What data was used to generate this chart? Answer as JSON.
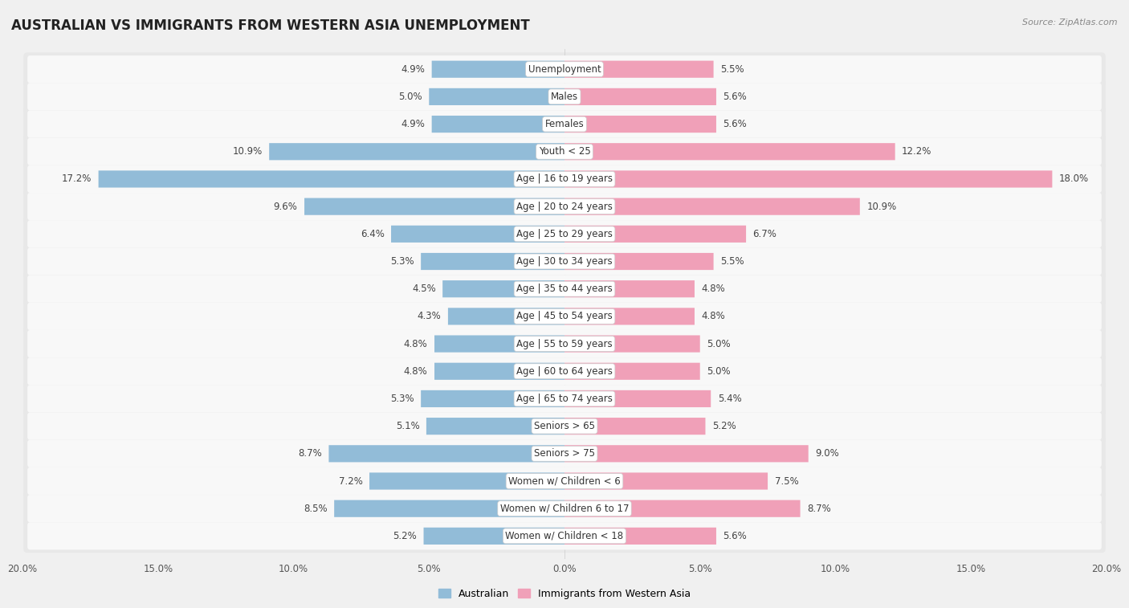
{
  "title": "AUSTRALIAN VS IMMIGRANTS FROM WESTERN ASIA UNEMPLOYMENT",
  "source": "Source: ZipAtlas.com",
  "categories": [
    "Unemployment",
    "Males",
    "Females",
    "Youth < 25",
    "Age | 16 to 19 years",
    "Age | 20 to 24 years",
    "Age | 25 to 29 years",
    "Age | 30 to 34 years",
    "Age | 35 to 44 years",
    "Age | 45 to 54 years",
    "Age | 55 to 59 years",
    "Age | 60 to 64 years",
    "Age | 65 to 74 years",
    "Seniors > 65",
    "Seniors > 75",
    "Women w/ Children < 6",
    "Women w/ Children 6 to 17",
    "Women w/ Children < 18"
  ],
  "australian": [
    4.9,
    5.0,
    4.9,
    10.9,
    17.2,
    9.6,
    6.4,
    5.3,
    4.5,
    4.3,
    4.8,
    4.8,
    5.3,
    5.1,
    8.7,
    7.2,
    8.5,
    5.2
  ],
  "immigrants": [
    5.5,
    5.6,
    5.6,
    12.2,
    18.0,
    10.9,
    6.7,
    5.5,
    4.8,
    4.8,
    5.0,
    5.0,
    5.4,
    5.2,
    9.0,
    7.5,
    8.7,
    5.6
  ],
  "australian_color": "#92bcd8",
  "immigrant_color": "#f0a0b8",
  "australian_label": "Australian",
  "immigrant_label": "Immigrants from Western Asia",
  "xlim": 20.0,
  "row_bg_color": "#e8e8e8",
  "bar_bg_color": "#f8f8f8",
  "fig_bg_color": "#f0f0f0",
  "title_fontsize": 12,
  "label_fontsize": 8.5,
  "value_fontsize": 8.5,
  "axis_fontsize": 8.5
}
